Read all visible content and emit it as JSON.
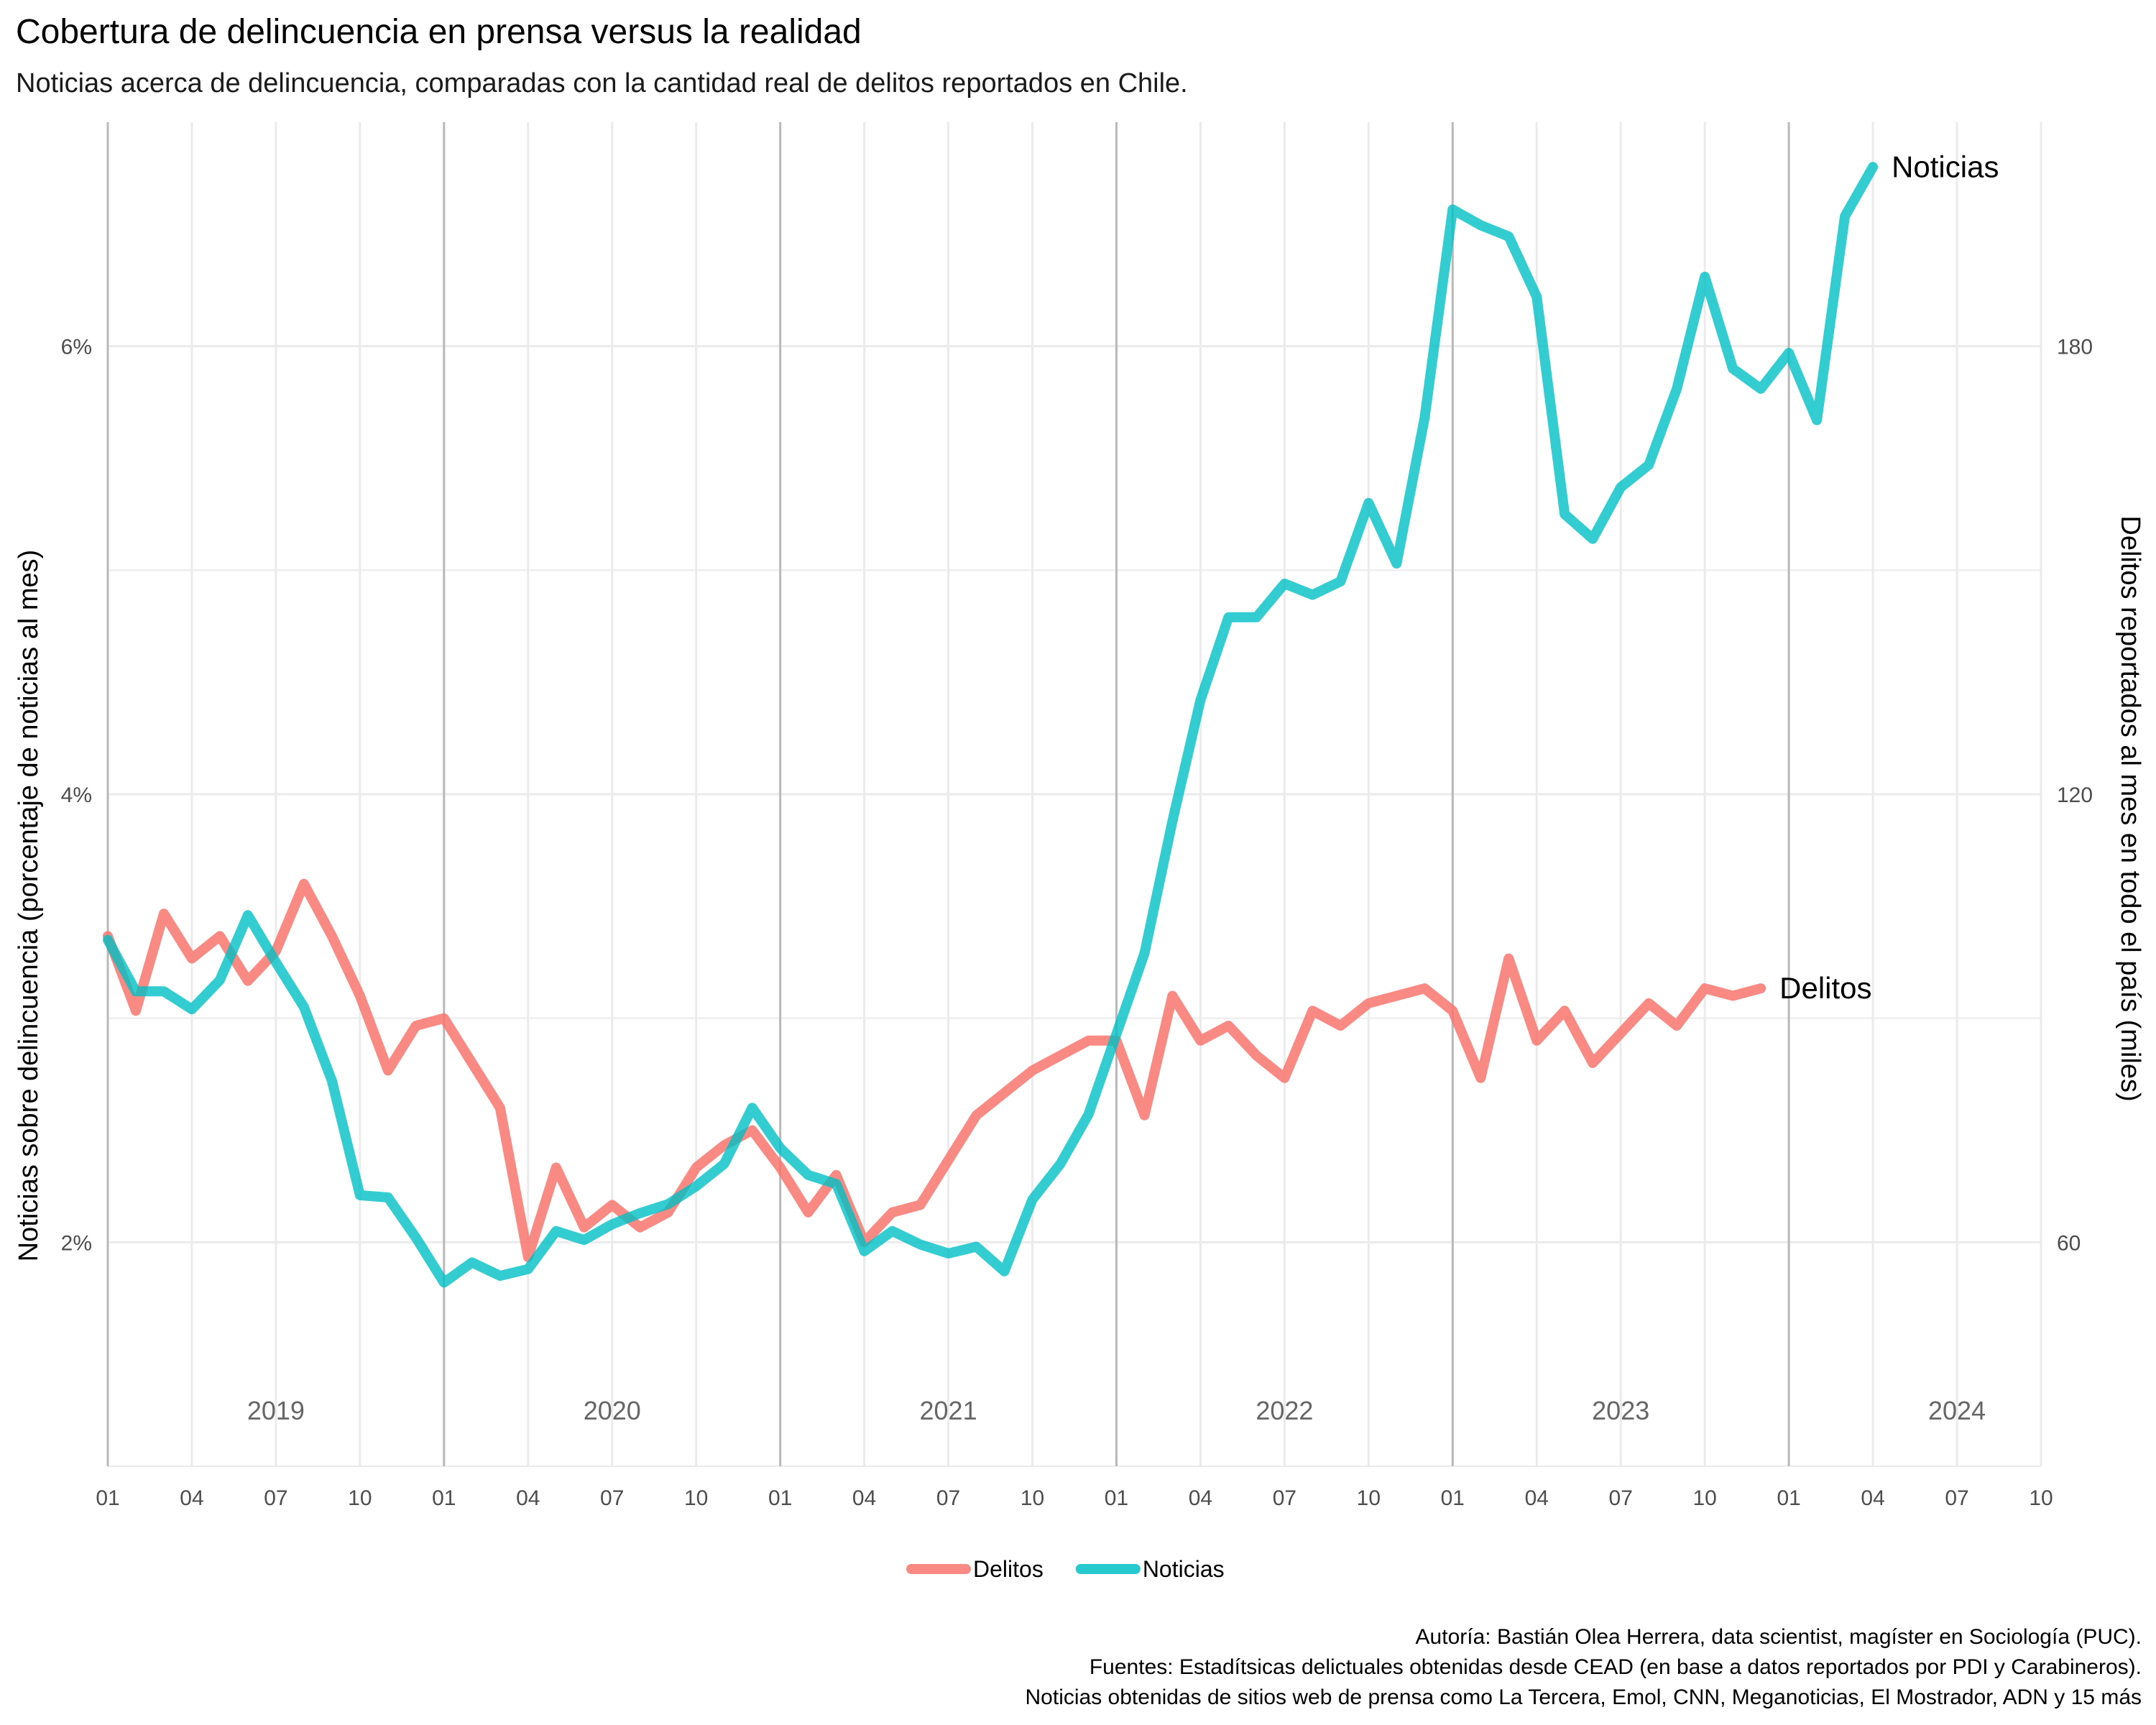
{
  "header": {
    "title": "Cobertura de delincuencia en prensa versus la realidad",
    "subtitle": "Noticias acerca de delincuencia, comparadas con la cantidad real de delitos reportados en Chile."
  },
  "footer": {
    "caption_lines": [
      "Autoría: Bastián Olea Herrera, data scientist, magíster en Sociología (PUC).",
      "Fuentes: Estadítsicas delictuales obtenidas desde CEAD (en base a datos reportados por PDI y Carabineros).",
      "Noticias obtenidas de sitios web de prensa como La Tercera, Emol, CNN, Meganoticias, El Mostrador, ADN y 15 más"
    ]
  },
  "chart_data": {
    "type": "line",
    "ylabel": "Noticias sobre delincuencia (porcentaje de noticias al mes)",
    "y2label": "Delitos reportados al mes en todo el país (miles)",
    "ylim": [
      1.0,
      7.0
    ],
    "y_ticks": [
      "2%",
      "4%",
      "6%"
    ],
    "y_tick_values": [
      2,
      4,
      6
    ],
    "y2lim": [
      30,
      210
    ],
    "y2_ticks": [
      "60",
      "120",
      "180"
    ],
    "y2_tick_values": [
      60,
      120,
      180
    ],
    "xlim": [
      "2019-01",
      "2024-10"
    ],
    "x_month_ticks": [
      "01",
      "04",
      "07",
      "10",
      "01",
      "04",
      "07",
      "10",
      "01",
      "04",
      "07",
      "10",
      "01",
      "04",
      "07",
      "10",
      "01",
      "04",
      "07",
      "10",
      "01",
      "04",
      "07",
      "10"
    ],
    "years": [
      "2019",
      "2020",
      "2021",
      "2022",
      "2023",
      "2024"
    ],
    "grid": true,
    "legend": {
      "position": "bottom",
      "entries": [
        {
          "name": "Delitos",
          "color": "#f8766d"
        },
        {
          "name": "Noticias",
          "color": "#00bfc4"
        }
      ]
    },
    "series": [
      {
        "name": "Delitos",
        "axis": "right",
        "color": "#f8766d",
        "start": "2019-01",
        "label": "Delitos",
        "values": [
          101,
          91,
          104,
          98,
          101,
          95,
          99,
          108,
          101,
          93,
          83,
          89,
          90,
          84,
          78,
          58,
          70,
          62,
          65,
          62,
          64,
          70,
          73,
          75,
          70,
          64,
          69,
          60,
          64,
          65,
          71,
          77,
          80,
          83,
          85,
          87,
          87,
          77,
          93,
          87,
          89,
          85,
          82,
          91,
          89,
          92,
          93,
          94,
          91,
          82,
          98,
          87,
          91,
          84,
          88,
          92,
          89,
          94,
          93,
          94
        ]
      },
      {
        "name": "Noticias",
        "axis": "left",
        "color": "#00bfc4",
        "start": "2019-01",
        "label": "Noticias",
        "values": [
          3.35,
          3.12,
          3.12,
          3.04,
          3.17,
          3.46,
          3.25,
          3.05,
          2.72,
          2.21,
          2.2,
          2.02,
          1.82,
          1.91,
          1.85,
          1.88,
          2.05,
          2.01,
          2.08,
          2.13,
          2.17,
          2.25,
          2.35,
          2.6,
          2.42,
          2.3,
          2.26,
          1.96,
          2.05,
          1.99,
          1.95,
          1.98,
          1.87,
          2.19,
          2.35,
          2.57,
          2.93,
          3.29,
          3.88,
          4.42,
          4.79,
          4.79,
          4.94,
          4.89,
          4.95,
          5.3,
          5.03,
          5.68,
          6.61,
          6.54,
          6.49,
          6.22,
          5.25,
          5.14,
          5.37,
          5.47,
          5.81,
          6.31,
          5.9,
          5.81,
          5.97,
          5.67,
          6.58,
          6.8
        ]
      }
    ]
  }
}
